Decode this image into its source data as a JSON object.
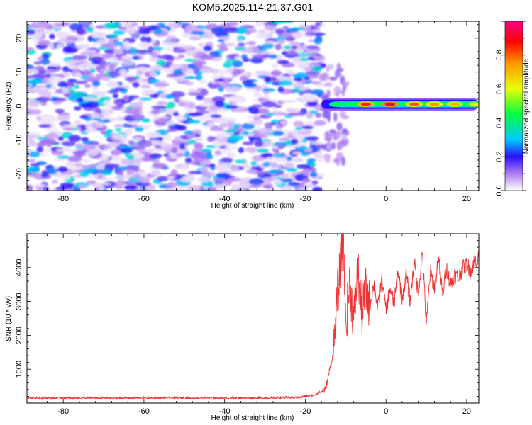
{
  "title": "KOM5.2025.114.21.37.G01",
  "chart_data": [
    {
      "type": "heatmap",
      "name": "spectrogram",
      "xlabel": "Height of straight line (km)",
      "ylabel": "Frequency (Hz)",
      "xlim": [
        -89,
        23
      ],
      "ylim": [
        -25,
        25
      ],
      "xticks": [
        -80,
        -60,
        -40,
        -20,
        0,
        20
      ],
      "yticks": [
        -20,
        -10,
        0,
        10,
        20
      ],
      "xtick_labels": [
        "-80",
        "-60",
        "-40",
        "-20",
        "0",
        "20"
      ],
      "ytick_labels": [
        "-20",
        "-10",
        "0",
        "10",
        "20"
      ],
      "noise_region_km": [
        -89,
        -16
      ],
      "noise_amplitude_range": [
        0.02,
        0.35
      ],
      "signal_band": {
        "frequency_hz": 0.5,
        "x_start_km": -16,
        "x_end_km": 23,
        "hotspots": [
          {
            "x": -12,
            "amplitude": 0.45
          },
          {
            "x": -5,
            "amplitude": 0.85
          },
          {
            "x": 1,
            "amplitude": 0.95
          },
          {
            "x": 7,
            "amplitude": 0.8
          },
          {
            "x": 12,
            "amplitude": 0.75
          },
          {
            "x": 17,
            "amplitude": 0.7
          },
          {
            "x": 22,
            "amplitude": 0.6
          }
        ]
      },
      "colorbar": {
        "label": "Normalized spectral amplitude",
        "range": [
          0,
          1
        ],
        "ticks": [
          0.0,
          0.2,
          0.4,
          0.6,
          0.8
        ],
        "tick_labels": [
          "0.0",
          "0.2",
          "0.4",
          "0.6",
          "0.8"
        ]
      }
    },
    {
      "type": "line",
      "name": "snr",
      "xlabel": "Height of straight line (km)",
      "ylabel": "SNR (10 * v/v)",
      "xlim": [
        -89,
        23
      ],
      "ylim": [
        0,
        5000
      ],
      "xticks": [
        -80,
        -60,
        -40,
        -20,
        0,
        20
      ],
      "yticks": [
        1000,
        2000,
        3000,
        4000
      ],
      "xtick_labels": [
        "-80",
        "-60",
        "-40",
        "-20",
        "0",
        "20"
      ],
      "ytick_labels": [
        "1000",
        "2000",
        "3000",
        "4000"
      ],
      "series": [
        {
          "name": "SNR",
          "color": "#ee3333",
          "x": [
            -89,
            -80,
            -70,
            -60,
            -50,
            -40,
            -30,
            -22,
            -18,
            -15,
            -13,
            -12,
            -11,
            -10.5,
            -10,
            -9,
            -8,
            -7,
            -6,
            -5,
            -4,
            -3,
            -2,
            -1,
            0,
            1,
            2,
            3,
            4,
            5,
            6,
            7,
            8,
            9,
            10,
            11,
            12,
            13,
            14,
            15,
            16,
            17,
            18,
            19,
            20,
            21,
            22,
            23
          ],
          "y": [
            150,
            150,
            145,
            150,
            150,
            150,
            150,
            165,
            230,
            400,
            1500,
            3200,
            4400,
            4900,
            2200,
            3600,
            2400,
            4000,
            2600,
            3300,
            2900,
            3500,
            2800,
            3700,
            2700,
            3400,
            2900,
            3900,
            3100,
            3800,
            3000,
            4200,
            3200,
            4500,
            2300,
            3900,
            3400,
            4300,
            3200,
            4000,
            3500,
            3800,
            3700,
            4000,
            4100,
            3900,
            4200,
            4300
          ]
        }
      ]
    }
  ]
}
